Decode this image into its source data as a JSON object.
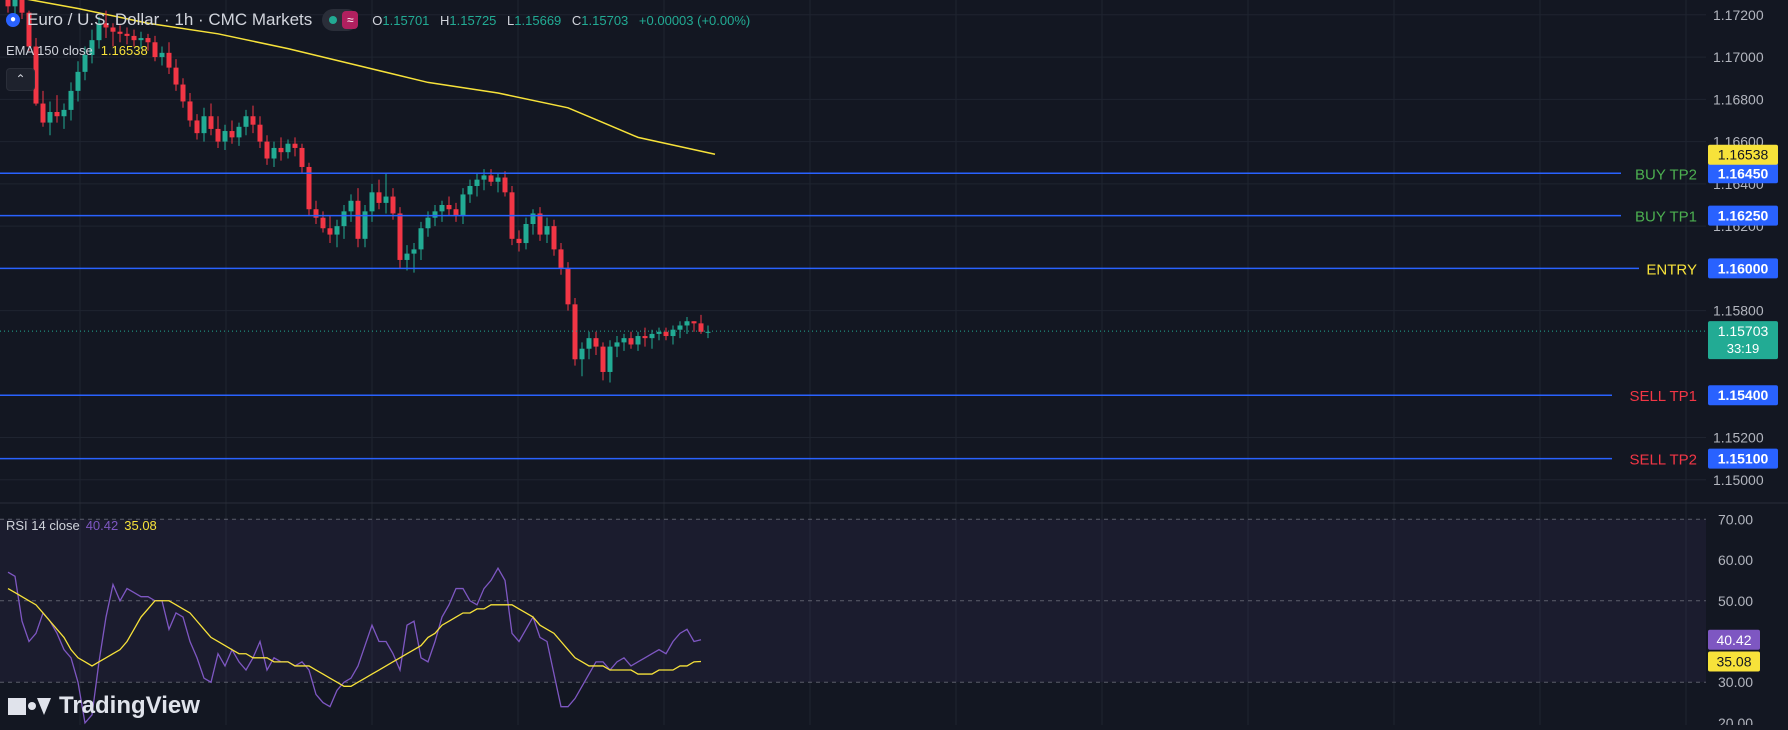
{
  "header": {
    "symbol_title": "Euro / U.S. Dollar · 1h · CMC Markets",
    "live_badge": "≈",
    "ohlc": {
      "o_label": "O",
      "o": "1.15701",
      "h_label": "H",
      "h": "1.15725",
      "l_label": "L",
      "l": "1.15669",
      "c_label": "C",
      "c": "1.15703",
      "change": "+0.00003 (+0.00%)"
    },
    "ema_label": "EMA 150 close",
    "ema_value": "1.16538",
    "collapse_icon": "chevron-up-icon",
    "rsi_label": "RSI 14 close",
    "rsi_value": "40.42",
    "rsi_ma_value": "35.08"
  },
  "watermark": {
    "text": "TradingView"
  },
  "colors": {
    "background": "#131722",
    "grid": "#1f2430",
    "bull": "#22ab94",
    "bear": "#f23645",
    "level_line": "#2962ff",
    "ema": "#f7e23a",
    "rsi": "#7e57c2",
    "rsi_ma": "#f7e23a",
    "buy_text": "#4caf50",
    "sell_text": "#f23645",
    "entry_text": "#f7e23a"
  },
  "chart_data": [
    {
      "type": "candlestick",
      "interval": "1h",
      "ylim": [
        1.1489,
        1.1727
      ],
      "y_ticks": [
        "1.15000",
        "1.15200",
        "1.15800",
        "1.16200",
        "1.16400",
        "1.16600",
        "1.16800",
        "1.17000",
        "1.17200"
      ],
      "candles": [
        [
          1.1727,
          1.1731,
          1.1721,
          1.1724
        ],
        [
          1.1724,
          1.173,
          1.172,
          1.1727
        ],
        [
          1.1727,
          1.1728,
          1.1718,
          1.1721
        ],
        [
          1.1721,
          1.1722,
          1.1703,
          1.1705
        ],
        [
          1.1705,
          1.1709,
          1.1677,
          1.1678
        ],
        [
          1.1678,
          1.1684,
          1.1667,
          1.1669
        ],
        [
          1.1669,
          1.1679,
          1.1663,
          1.1674
        ],
        [
          1.1674,
          1.1682,
          1.1669,
          1.1672
        ],
        [
          1.1672,
          1.1678,
          1.1666,
          1.1675
        ],
        [
          1.1675,
          1.1688,
          1.167,
          1.1684
        ],
        [
          1.1684,
          1.1698,
          1.1679,
          1.1693
        ],
        [
          1.1693,
          1.1705,
          1.1689,
          1.1701
        ],
        [
          1.1701,
          1.1713,
          1.1697,
          1.1708
        ],
        [
          1.1708,
          1.1719,
          1.1704,
          1.1716
        ],
        [
          1.1716,
          1.1722,
          1.1709,
          1.1714
        ],
        [
          1.1714,
          1.1716,
          1.1705,
          1.1712
        ],
        [
          1.1712,
          1.1715,
          1.1707,
          1.1711
        ],
        [
          1.1711,
          1.1714,
          1.1706,
          1.171
        ],
        [
          1.171,
          1.1713,
          1.1705,
          1.1708
        ],
        [
          1.1708,
          1.1712,
          1.1704,
          1.1709
        ],
        [
          1.1709,
          1.1711,
          1.1703,
          1.1707
        ],
        [
          1.1707,
          1.171,
          1.1698,
          1.17
        ],
        [
          1.17,
          1.1705,
          1.1696,
          1.1702
        ],
        [
          1.1702,
          1.1707,
          1.1692,
          1.1695
        ],
        [
          1.1695,
          1.1699,
          1.1684,
          1.1687
        ],
        [
          1.1687,
          1.169,
          1.1676,
          1.1679
        ],
        [
          1.1679,
          1.1683,
          1.1667,
          1.167
        ],
        [
          1.167,
          1.1673,
          1.1661,
          1.1664
        ],
        [
          1.1664,
          1.1676,
          1.166,
          1.1672
        ],
        [
          1.1672,
          1.1678,
          1.1663,
          1.1666
        ],
        [
          1.1666,
          1.1672,
          1.1657,
          1.166
        ],
        [
          1.166,
          1.1668,
          1.1656,
          1.1665
        ],
        [
          1.1665,
          1.167,
          1.1659,
          1.1662
        ],
        [
          1.1662,
          1.1669,
          1.1658,
          1.1667
        ],
        [
          1.1667,
          1.1675,
          1.1663,
          1.1672
        ],
        [
          1.1672,
          1.1677,
          1.1664,
          1.1668
        ],
        [
          1.1668,
          1.1672,
          1.1657,
          1.166
        ],
        [
          1.166,
          1.1663,
          1.1649,
          1.1652
        ],
        [
          1.1652,
          1.166,
          1.1648,
          1.1657
        ],
        [
          1.1657,
          1.1662,
          1.1651,
          1.1655
        ],
        [
          1.1655,
          1.1661,
          1.1652,
          1.1659
        ],
        [
          1.1659,
          1.1662,
          1.1653,
          1.1657
        ],
        [
          1.1657,
          1.1659,
          1.1645,
          1.1648
        ],
        [
          1.1648,
          1.165,
          1.1625,
          1.1628
        ],
        [
          1.1628,
          1.1632,
          1.1621,
          1.1624
        ],
        [
          1.1624,
          1.1627,
          1.1617,
          1.1619
        ],
        [
          1.1619,
          1.1625,
          1.1612,
          1.1616
        ],
        [
          1.1616,
          1.1623,
          1.161,
          1.162
        ],
        [
          1.162,
          1.163,
          1.1614,
          1.1627
        ],
        [
          1.1627,
          1.1635,
          1.1622,
          1.1632
        ],
        [
          1.1632,
          1.1638,
          1.161,
          1.1614
        ],
        [
          1.1614,
          1.163,
          1.161,
          1.1627
        ],
        [
          1.1627,
          1.164,
          1.1622,
          1.1636
        ],
        [
          1.1636,
          1.1642,
          1.1628,
          1.1631
        ],
        [
          1.1631,
          1.1645,
          1.1626,
          1.1634
        ],
        [
          1.1634,
          1.1638,
          1.1623,
          1.1626
        ],
        [
          1.1626,
          1.1629,
          1.16,
          1.1604
        ],
        [
          1.1604,
          1.1611,
          1.1599,
          1.1607
        ],
        [
          1.1607,
          1.1612,
          1.1598,
          1.1609
        ],
        [
          1.1609,
          1.1622,
          1.1604,
          1.1619
        ],
        [
          1.1619,
          1.1627,
          1.1615,
          1.1624
        ],
        [
          1.1624,
          1.163,
          1.162,
          1.1627
        ],
        [
          1.1627,
          1.1632,
          1.1622,
          1.163
        ],
        [
          1.163,
          1.1634,
          1.1625,
          1.1628
        ],
        [
          1.1628,
          1.1631,
          1.1622,
          1.1625
        ],
        [
          1.1625,
          1.1638,
          1.1621,
          1.1635
        ],
        [
          1.1635,
          1.1642,
          1.1631,
          1.1639
        ],
        [
          1.1639,
          1.1645,
          1.1634,
          1.1642
        ],
        [
          1.1642,
          1.1647,
          1.1637,
          1.1644
        ],
        [
          1.1644,
          1.1647,
          1.1639,
          1.1641
        ],
        [
          1.1641,
          1.1645,
          1.1636,
          1.1643
        ],
        [
          1.1643,
          1.1646,
          1.1634,
          1.1636
        ],
        [
          1.1636,
          1.1639,
          1.1611,
          1.1614
        ],
        [
          1.1614,
          1.1618,
          1.1608,
          1.1612
        ],
        [
          1.1612,
          1.1624,
          1.1609,
          1.1621
        ],
        [
          1.1621,
          1.1628,
          1.1616,
          1.1626
        ],
        [
          1.1626,
          1.1629,
          1.1613,
          1.1616
        ],
        [
          1.1616,
          1.1624,
          1.1612,
          1.162
        ],
        [
          1.162,
          1.1623,
          1.1606,
          1.1609
        ],
        [
          1.1609,
          1.1612,
          1.1597,
          1.16
        ],
        [
          1.16,
          1.1603,
          1.158,
          1.1583
        ],
        [
          1.1583,
          1.1586,
          1.1554,
          1.1557
        ],
        [
          1.1557,
          1.1565,
          1.1549,
          1.1562
        ],
        [
          1.1562,
          1.157,
          1.1557,
          1.1567
        ],
        [
          1.1567,
          1.157,
          1.1559,
          1.1563
        ],
        [
          1.1563,
          1.1565,
          1.1547,
          1.1551
        ],
        [
          1.1551,
          1.1566,
          1.1546,
          1.1563
        ],
        [
          1.1563,
          1.1568,
          1.1558,
          1.1565
        ],
        [
          1.1565,
          1.1569,
          1.1561,
          1.1567
        ],
        [
          1.1567,
          1.157,
          1.1562,
          1.1564
        ],
        [
          1.1564,
          1.157,
          1.1561,
          1.1568
        ],
        [
          1.1568,
          1.1572,
          1.1563,
          1.1567
        ],
        [
          1.1567,
          1.1571,
          1.1562,
          1.1569
        ],
        [
          1.1569,
          1.1572,
          1.1566,
          1.157
        ],
        [
          1.157,
          1.1572,
          1.1566,
          1.1568
        ],
        [
          1.1568,
          1.1573,
          1.1564,
          1.1571
        ],
        [
          1.1571,
          1.1575,
          1.1567,
          1.1573
        ],
        [
          1.1573,
          1.1577,
          1.1569,
          1.1575
        ],
        [
          1.1575,
          1.1575,
          1.157,
          1.1574
        ],
        [
          1.1574,
          1.1578,
          1.1569,
          1.157
        ],
        [
          1.157,
          1.1573,
          1.1567,
          1.157
        ]
      ],
      "ema_150": [
        [
          0,
          1.1729
        ],
        [
          10,
          1.1723
        ],
        [
          20,
          1.1716
        ],
        [
          30,
          1.1711
        ],
        [
          40,
          1.1704
        ],
        [
          50,
          1.1696
        ],
        [
          60,
          1.1688
        ],
        [
          70,
          1.1683
        ],
        [
          80,
          1.1676
        ],
        [
          85,
          1.1669
        ],
        [
          90,
          1.1662
        ],
        [
          101,
          1.1654
        ]
      ],
      "levels": [
        {
          "name": "BUY TP2",
          "price": "1.16450",
          "kind": "buy"
        },
        {
          "name": "BUY TP1",
          "price": "1.16250",
          "kind": "buy"
        },
        {
          "name": "ENTRY",
          "price": "1.16000",
          "kind": "entry"
        },
        {
          "name": "SELL TP1",
          "price": "1.15400",
          "kind": "sell"
        },
        {
          "name": "SELL TP2",
          "price": "1.15100",
          "kind": "sell"
        }
      ],
      "price_badges": {
        "ema": "1.16538",
        "last": "1.15703",
        "countdown": "33:19"
      }
    },
    {
      "type": "line",
      "title": "RSI 14 close",
      "ylim": [
        19.5,
        74
      ],
      "y_ticks": [
        "20.00",
        "30.00",
        "50.00",
        "60.00",
        "70.00"
      ],
      "bands": [
        70,
        50,
        30
      ],
      "series": [
        {
          "values": [
            57,
            56,
            45,
            40,
            42,
            47,
            45,
            42,
            38,
            36,
            30,
            20,
            22,
            35,
            46,
            54,
            50,
            53,
            52,
            51,
            51,
            50,
            50,
            43,
            47,
            46,
            40,
            36,
            31,
            30,
            37,
            34,
            38,
            35,
            33,
            36,
            40,
            33,
            36,
            35,
            35,
            34,
            35,
            33,
            27,
            25,
            24,
            28,
            30,
            31,
            34,
            39,
            44,
            40,
            40,
            37,
            33,
            44,
            45,
            36,
            35,
            40,
            46,
            49,
            53,
            53,
            50,
            49,
            53,
            55,
            58,
            55,
            42,
            40,
            43,
            46,
            41,
            40,
            32,
            24,
            24,
            26,
            29,
            32,
            35,
            35,
            33,
            35,
            36,
            34,
            35,
            36,
            37,
            38,
            37,
            40,
            42,
            43,
            40,
            40.42
          ]
        },
        {
          "values": [
            53,
            52,
            51,
            50,
            49,
            47,
            45,
            43,
            41,
            38,
            36,
            35,
            34,
            35,
            36,
            37,
            38,
            40,
            43,
            46,
            48,
            50,
            50,
            50,
            49,
            48,
            47,
            45,
            43,
            41,
            40,
            39,
            38,
            37,
            37,
            36,
            36,
            36,
            35,
            35,
            35,
            34,
            34,
            34,
            33,
            32,
            31,
            30,
            29,
            29,
            30,
            31,
            32,
            33,
            34,
            35,
            36,
            37,
            38,
            39,
            41,
            42,
            44,
            45,
            46,
            47,
            47,
            48,
            48,
            49,
            49,
            49,
            49,
            48,
            47,
            46,
            44,
            43,
            42,
            40,
            38,
            36,
            35,
            34,
            34,
            34,
            33,
            33,
            33,
            33,
            32,
            32,
            32,
            33,
            33,
            33,
            34,
            34,
            35,
            35.08
          ]
        }
      ],
      "value_badges": {
        "rsi": "40.42",
        "ma": "35.08"
      }
    }
  ]
}
